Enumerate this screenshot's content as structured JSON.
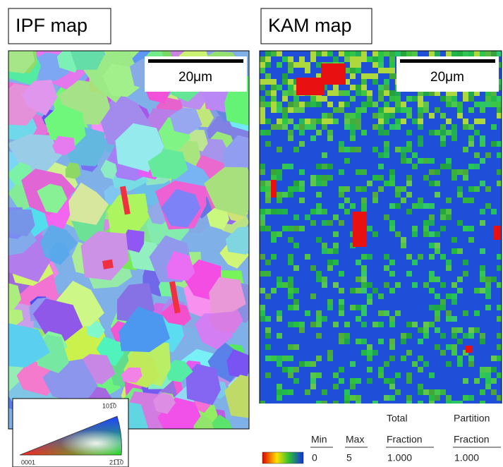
{
  "panels": [
    {
      "title": "IPF map",
      "scale_bar": "20μm"
    },
    {
      "title": "KAM map",
      "scale_bar": "20μm"
    }
  ],
  "ipf_legend": {
    "top": "101̅0",
    "bottom_left": "0001",
    "bottom_right": "21̅1̅0"
  },
  "kam_legend": {
    "headers": [
      "Min",
      "Max",
      "Total",
      "Partition"
    ],
    "subheaders": [
      "Fraction",
      "Fraction"
    ],
    "row": [
      "0",
      "5",
      "1.000",
      "1.000"
    ]
  }
}
